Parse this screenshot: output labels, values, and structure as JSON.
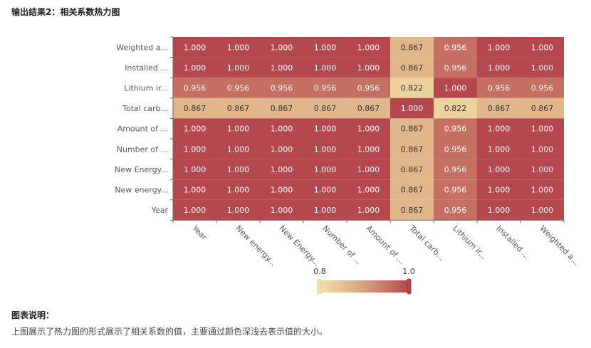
{
  "page": {
    "title": "输出结果2：相关系数热力图",
    "description_title": "图表说明：",
    "description": "上图展示了热力图的形式展示了相关系数的值，主要通过颜色深浅去表示值的大小。"
  },
  "colors": {
    "low": "#f2e2a4",
    "mid": "#d9a07d",
    "high": "#b5484f",
    "grid": "#ffffff",
    "axis": "#666666"
  },
  "chart_data": {
    "type": "heatmap",
    "x_labels": [
      "Year",
      "New energy...",
      "New Energy...",
      "Number of ...",
      "Amount of ...",
      "Total carb...",
      "Lithium ir...",
      "Installed ...",
      "Weighted a..."
    ],
    "y_labels": [
      "Weighted a...",
      "Installed ...",
      "Lithium ir...",
      "Total carb...",
      "Amount of ...",
      "Number of ...",
      "New Energy...",
      "New energy...",
      "Year"
    ],
    "values": [
      [
        1.0,
        1.0,
        1.0,
        1.0,
        1.0,
        0.867,
        0.956,
        1.0,
        1.0
      ],
      [
        1.0,
        1.0,
        1.0,
        1.0,
        1.0,
        0.867,
        0.956,
        1.0,
        1.0
      ],
      [
        0.956,
        0.956,
        0.956,
        0.956,
        0.956,
        0.822,
        1.0,
        0.956,
        0.956
      ],
      [
        0.867,
        0.867,
        0.867,
        0.867,
        0.867,
        1.0,
        0.822,
        0.867,
        0.867
      ],
      [
        1.0,
        1.0,
        1.0,
        1.0,
        1.0,
        0.867,
        0.956,
        1.0,
        1.0
      ],
      [
        1.0,
        1.0,
        1.0,
        1.0,
        1.0,
        0.867,
        0.956,
        1.0,
        1.0
      ],
      [
        1.0,
        1.0,
        1.0,
        1.0,
        1.0,
        0.867,
        0.956,
        1.0,
        1.0
      ],
      [
        1.0,
        1.0,
        1.0,
        1.0,
        1.0,
        0.867,
        0.956,
        1.0,
        1.0
      ],
      [
        1.0,
        1.0,
        1.0,
        1.0,
        1.0,
        0.867,
        0.956,
        1.0,
        1.0
      ]
    ],
    "value_range": [
      0.8,
      1.0
    ],
    "legend_min_label": "0.8",
    "legend_max_label": "1.0"
  }
}
